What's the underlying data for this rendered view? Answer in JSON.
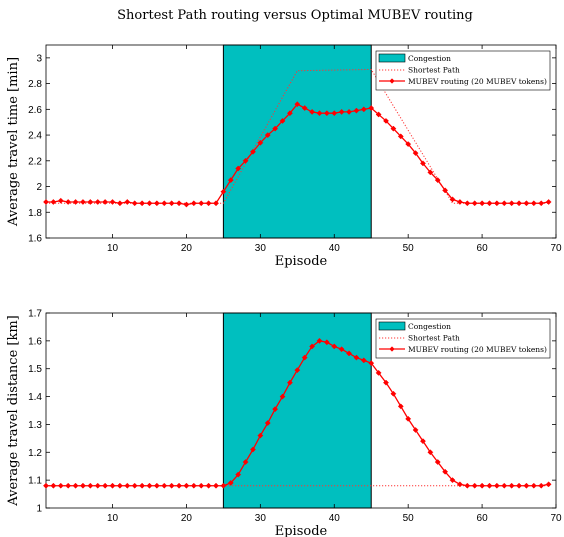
{
  "title": "Shortest Path routing versus Optimal MUBEV routing",
  "colors": {
    "congestion": "#00BFBF",
    "shortest": "#FF3333",
    "mubev": "#FF0000"
  },
  "chart_data": [
    {
      "type": "line",
      "xlabel": "Episode",
      "ylabel": "Average travel time [min]",
      "xlim": [
        1,
        70
      ],
      "ylim": [
        1.6,
        3.1
      ],
      "xticks": [
        "10",
        "20",
        "30",
        "40",
        "50",
        "60",
        "70"
      ],
      "yticks": [
        "1.6",
        "1.8",
        "2",
        "2.2",
        "2.4",
        "2.6",
        "2.8",
        "3"
      ],
      "congestion": [
        25,
        45
      ],
      "legend": [
        "Congestion",
        "Shortest Path",
        "MUBEV routing (20 MUBEV tokens)"
      ],
      "legend_position": "top-right",
      "shortest_path": {
        "x": [
          1,
          25,
          35,
          45,
          56,
          69
        ],
        "y": [
          1.87,
          1.87,
          2.9,
          2.91,
          1.87,
          1.87
        ]
      },
      "mubev": {
        "x": [
          1,
          2,
          3,
          4,
          5,
          6,
          7,
          8,
          9,
          10,
          11,
          12,
          13,
          14,
          15,
          16,
          17,
          18,
          19,
          20,
          21,
          22,
          23,
          24,
          25,
          26,
          27,
          28,
          29,
          30,
          31,
          32,
          33,
          34,
          35,
          36,
          37,
          38,
          39,
          40,
          41,
          42,
          43,
          44,
          45,
          46,
          47,
          48,
          49,
          50,
          51,
          52,
          53,
          54,
          55,
          56,
          57,
          58,
          59,
          60,
          61,
          62,
          63,
          64,
          65,
          66,
          67,
          68,
          69
        ],
        "y": [
          1.88,
          1.88,
          1.89,
          1.88,
          1.88,
          1.88,
          1.88,
          1.88,
          1.88,
          1.88,
          1.87,
          1.88,
          1.87,
          1.87,
          1.87,
          1.87,
          1.87,
          1.87,
          1.87,
          1.86,
          1.87,
          1.87,
          1.87,
          1.87,
          1.96,
          2.05,
          2.14,
          2.2,
          2.27,
          2.34,
          2.4,
          2.45,
          2.51,
          2.57,
          2.64,
          2.61,
          2.58,
          2.57,
          2.57,
          2.57,
          2.58,
          2.58,
          2.59,
          2.6,
          2.61,
          2.56,
          2.51,
          2.45,
          2.39,
          2.33,
          2.26,
          2.18,
          2.11,
          2.05,
          1.97,
          1.9,
          1.88,
          1.87,
          1.87,
          1.87,
          1.87,
          1.87,
          1.87,
          1.87,
          1.87,
          1.87,
          1.87,
          1.87,
          1.88
        ]
      }
    },
    {
      "type": "line",
      "xlabel": "Episode",
      "ylabel": "Average travel distance [km]",
      "xlim": [
        1,
        70
      ],
      "ylim": [
        1.0,
        1.7
      ],
      "xticks": [
        "10",
        "20",
        "30",
        "40",
        "50",
        "60",
        "70"
      ],
      "yticks": [
        "1",
        "1.1",
        "1.2",
        "1.3",
        "1.4",
        "1.5",
        "1.6",
        "1.7"
      ],
      "congestion": [
        25,
        45
      ],
      "legend": [
        "Congestion",
        "Shortest Path",
        "MUBEV routing (20 MUBEV tokens)"
      ],
      "legend_position": "top-right",
      "shortest_path": {
        "x": [
          1,
          69
        ],
        "y": [
          1.08,
          1.08
        ]
      },
      "mubev": {
        "x": [
          1,
          2,
          3,
          4,
          5,
          6,
          7,
          8,
          9,
          10,
          11,
          12,
          13,
          14,
          15,
          16,
          17,
          18,
          19,
          20,
          21,
          22,
          23,
          24,
          25,
          26,
          27,
          28,
          29,
          30,
          31,
          32,
          33,
          34,
          35,
          36,
          37,
          38,
          39,
          40,
          41,
          42,
          43,
          44,
          45,
          46,
          47,
          48,
          49,
          50,
          51,
          52,
          53,
          54,
          55,
          56,
          57,
          58,
          59,
          60,
          61,
          62,
          63,
          64,
          65,
          66,
          67,
          68,
          69
        ],
        "y": [
          1.08,
          1.08,
          1.08,
          1.08,
          1.08,
          1.08,
          1.08,
          1.08,
          1.08,
          1.08,
          1.08,
          1.08,
          1.08,
          1.08,
          1.08,
          1.08,
          1.08,
          1.08,
          1.08,
          1.08,
          1.08,
          1.08,
          1.08,
          1.08,
          1.08,
          1.09,
          1.12,
          1.165,
          1.21,
          1.26,
          1.305,
          1.355,
          1.4,
          1.45,
          1.495,
          1.54,
          1.58,
          1.6,
          1.595,
          1.58,
          1.57,
          1.555,
          1.54,
          1.53,
          1.52,
          1.485,
          1.45,
          1.41,
          1.365,
          1.32,
          1.28,
          1.24,
          1.2,
          1.165,
          1.13,
          1.1,
          1.085,
          1.08,
          1.08,
          1.08,
          1.08,
          1.08,
          1.08,
          1.08,
          1.08,
          1.08,
          1.08,
          1.08,
          1.085
        ]
      }
    }
  ]
}
